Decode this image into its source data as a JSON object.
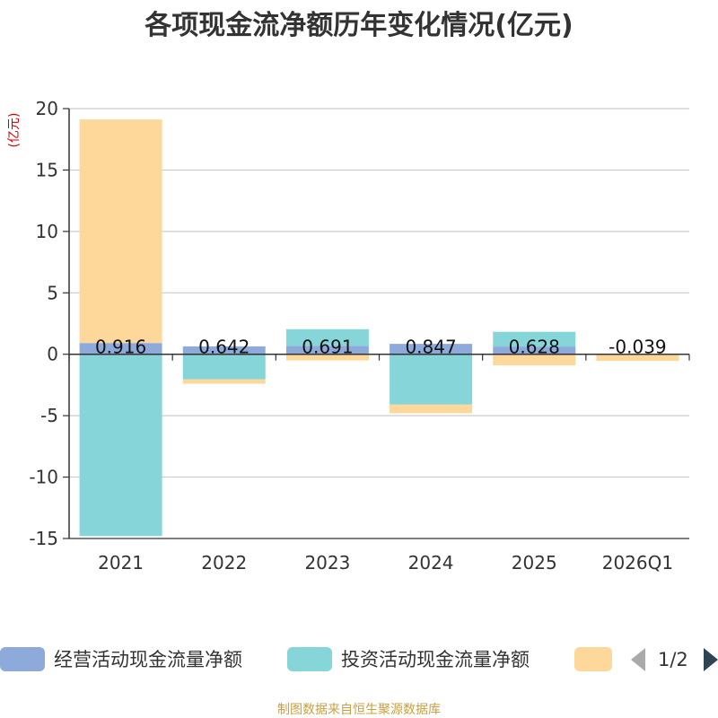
{
  "chart_data": {
    "type": "bar",
    "stacked": true,
    "title": "各项现金流净额历年变化情况(亿元)",
    "ylabel": "(亿元)",
    "ylim": [
      -15,
      20
    ],
    "yticks": [
      20,
      15,
      10,
      5,
      0,
      -5,
      -10,
      -15
    ],
    "categories": [
      "2021",
      "2022",
      "2023",
      "2024",
      "2025",
      "2026Q1"
    ],
    "series": [
      {
        "name": "经营活动现金流量净额",
        "color": "#8eaadb",
        "values": [
          0.916,
          0.642,
          0.691,
          0.847,
          0.628,
          -0.039
        ]
      },
      {
        "name": "投资活动现金流量净额",
        "color": "#86d5d8",
        "values": [
          -14.8,
          -2.05,
          1.35,
          -4.1,
          1.2,
          0.0
        ]
      },
      {
        "name": "",
        "color": "#fdd89a",
        "values": [
          18.2,
          -0.35,
          -0.5,
          -0.7,
          -0.9,
          -0.5
        ]
      }
    ],
    "data_labels": [
      "0.916",
      "0.642",
      "0.691",
      "0.847",
      "0.628",
      "-0.039"
    ]
  },
  "legend": {
    "items": [
      "经营活动现金流量净额",
      "投资活动现金流量净额",
      ""
    ],
    "page": "1/2"
  },
  "footer": "制图数据来自恒生聚源数据库"
}
